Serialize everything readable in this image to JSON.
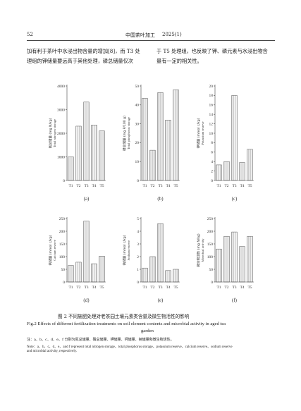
{
  "header": {
    "page": "52",
    "journal": "中国茶叶加工",
    "issue": "2025(1)"
  },
  "body": {
    "left_lines": [
      "加有利于茶叶中水浸出物含量的增加[8]，而 T3 处",
      "理组的钾储量要远高于其他处理，磷总储量仅次"
    ],
    "right_lines": [
      "于 T5 处理组，也反映了钾、磷元素与水浸出物含",
      "量有一定的相关性。"
    ]
  },
  "chart_data": [
    {
      "type": "bar",
      "label": "(a)",
      "ylabel": "氮总储量 (mg N/kg)",
      "ylabel_en": "Total nitrogen storage",
      "categories": [
        "T1",
        "T2",
        "T3",
        "T4",
        "T5"
      ],
      "values": [
        1000,
        2300,
        3320,
        2350,
        2100
      ],
      "ylim": [
        0,
        4000
      ],
      "yticks": [
        0,
        1000,
        2000,
        3000,
        4000
      ]
    },
    {
      "type": "bar",
      "label": "(b)",
      "ylabel": "磷总储量 (mg P/100 g)",
      "ylabel_en": "Total phosphorus storage",
      "categories": [
        "T1",
        "T2",
        "T3",
        "T4",
        "T5"
      ],
      "values": [
        43.5,
        16,
        46.5,
        32,
        48
      ],
      "ylim": [
        0,
        50
      ],
      "yticks": [
        0,
        10,
        20,
        30,
        40,
        50
      ]
    },
    {
      "type": "bar",
      "label": "(c)",
      "ylabel": "钾储量 (mmol c/kg)",
      "ylabel_en": "Potassium reserve",
      "categories": [
        "T1",
        "T2",
        "T3",
        "T4",
        "T5"
      ],
      "values": [
        3.3,
        4,
        18,
        3.8,
        6.6
      ],
      "ylim": [
        0,
        20
      ],
      "yticks": [
        0,
        2,
        4,
        6,
        8,
        10,
        12,
        14,
        16,
        18,
        20
      ]
    },
    {
      "type": "bar",
      "label": "(d)",
      "ylabel": "钙储量 (mmol c/kg)",
      "ylabel_en": "Calcium reserve",
      "categories": [
        "T1",
        "T2",
        "T3",
        "T4",
        "T5"
      ],
      "values": [
        65,
        78,
        240,
        72,
        102
      ],
      "ylim": [
        0,
        250
      ],
      "yticks": [
        0,
        50,
        100,
        150,
        200,
        250
      ]
    },
    {
      "type": "bar",
      "label": "(e)",
      "ylabel": "钠储量 (mmol c/kg)",
      "ylabel_en": "Sodium reserve",
      "categories": [
        "T1",
        "T2",
        "T3",
        "T4",
        "T5"
      ],
      "values": [
        1.1,
        2.0,
        4.6,
        0.9,
        1.0
      ],
      "ylim": [
        0,
        5
      ],
      "yticks": [
        0,
        1,
        2,
        3,
        4,
        5
      ]
    },
    {
      "type": "bar",
      "label": "(f)",
      "ylabel": "微生物活性 (mg N/kg)",
      "ylabel_en": "Microbial activity",
      "categories": [
        "T1",
        "T2",
        "T3",
        "T4",
        "T5"
      ],
      "values": [
        130,
        180,
        197,
        140,
        180
      ],
      "ylim": [
        0,
        250
      ],
      "yticks": [
        0,
        50,
        100,
        150,
        200,
        250
      ]
    }
  ],
  "caption": {
    "zh": "图 2  不同施肥处理对老茶园土壤元素类含量及微生物活性的影响",
    "en_lines": [
      "Fig.2  Effects of different fertilization treatments on soil element contents and microbial activity in aged tea",
      "garden"
    ],
    "note_zh": "注：a、b、c、d、e、f 分别为氮总储量、磷总储量、钾储量、钙储量、钠储量和微生物活性。",
    "note_en_lines": [
      "Note：a、b、c、d、e、and f represent total  nitrogen storage、total  phosphorus storage、potassium reserve、calcium reserve、sodium reserve",
      "and microbial activity, respectively."
    ]
  }
}
